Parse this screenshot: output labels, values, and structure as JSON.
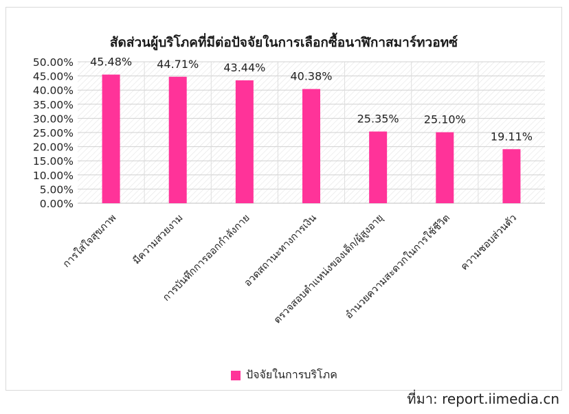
{
  "chart_data": {
    "type": "bar",
    "title": "สัดส่วนผู้บริโภคที่มีต่อปัจจัยในการเลือกซื้อนาฬิกาสมาร์ทวอทซ์",
    "categories": [
      "การใส่ใจสุขภาพ",
      "มีความสวยงาม",
      "การบันทึกการออกกำลังกาย",
      "อวดสถานะทางการเงิน",
      "ตรวจสอบตำแหน่งของเด็ก/ผู้สูงอายุ",
      "อำนวยความสะดวกในการใช้ชีวิต",
      "ความชอบส่วนตัว"
    ],
    "series": [
      {
        "name": "ปัจจัยในการบริโภค",
        "values": [
          45.48,
          44.71,
          43.44,
          40.38,
          25.35,
          25.1,
          19.11
        ]
      }
    ],
    "value_labels": [
      "45.48%",
      "44.71%",
      "43.44%",
      "40.38%",
      "25.35%",
      "25.10%",
      "19.11%"
    ],
    "y_ticks": [
      "0.00%",
      "5.00%",
      "10.00%",
      "15.00%",
      "20.00%",
      "25.00%",
      "30.00%",
      "35.00%",
      "40.00%",
      "45.00%",
      "50.00%"
    ],
    "ylim": [
      0,
      50
    ],
    "grid": true,
    "legend_position": "bottom",
    "bar_color": "#ff3399"
  },
  "source": "ที่มา: report.iimedia.cn"
}
